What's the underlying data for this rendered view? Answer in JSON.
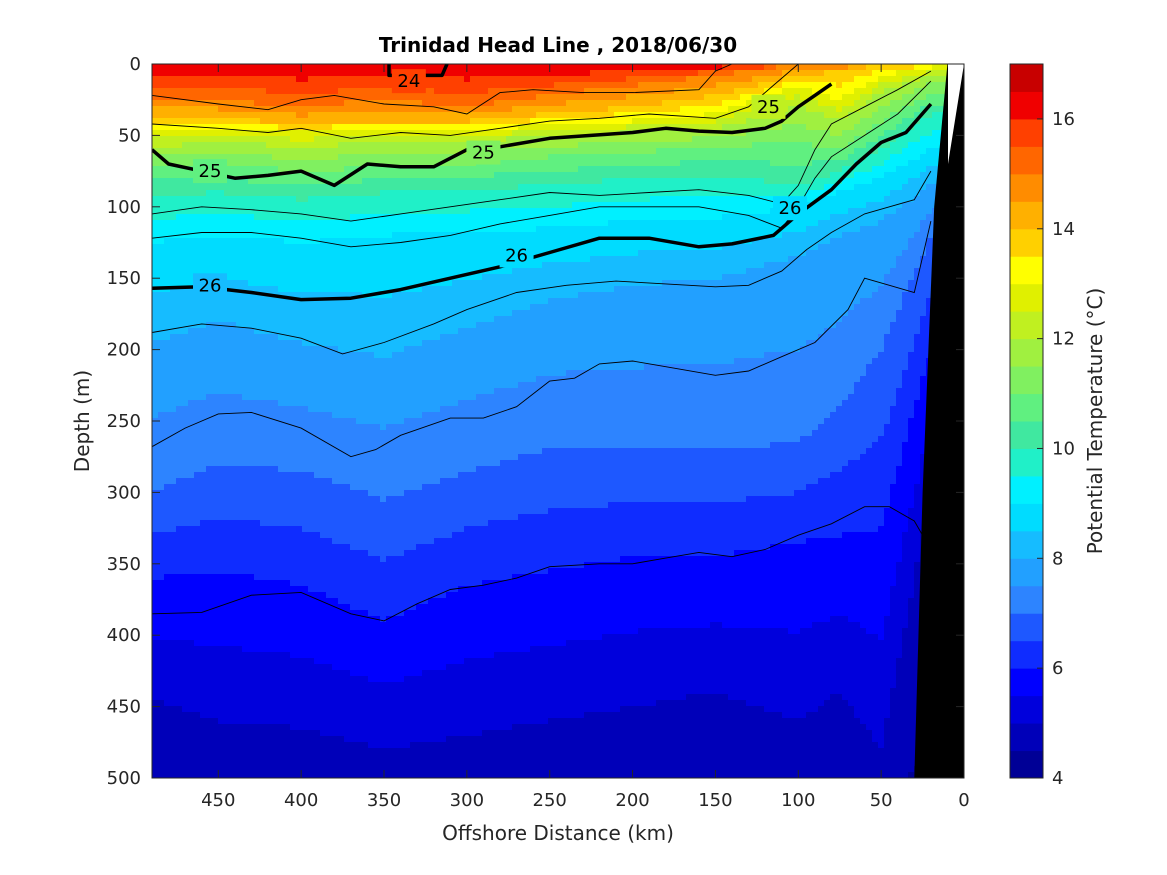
{
  "chart_data": {
    "type": "heatmap",
    "subtype": "filled-contour-section",
    "title": "Trinidad Head Line , 2018/06/30",
    "xlabel": "Offshore Distance (km)",
    "ylabel": "Depth (m)",
    "xlim": [
      490,
      0
    ],
    "x_reversed": true,
    "ylim": [
      0,
      500
    ],
    "y_reversed": true,
    "x_ticks": [
      450,
      400,
      350,
      300,
      250,
      200,
      150,
      100,
      50,
      0
    ],
    "y_ticks": [
      0,
      50,
      100,
      150,
      200,
      250,
      300,
      350,
      400,
      450,
      500
    ],
    "colorbar": {
      "label": "Potential Temperature (°C)",
      "range": [
        4,
        17
      ],
      "ticks": [
        4,
        6,
        8,
        10,
        12,
        14,
        16
      ],
      "levels": [
        4,
        4.5,
        5,
        5.5,
        6,
        6.5,
        7,
        7.5,
        8,
        8.5,
        9,
        9.5,
        10,
        10.5,
        11,
        11.5,
        12,
        12.5,
        13,
        13.5,
        14,
        14.5,
        15,
        15.5,
        16,
        16.5,
        17
      ],
      "colors": [
        "#000096",
        "#0000b9",
        "#0000dc",
        "#0000ff",
        "#0f2cff",
        "#1e58ff",
        "#2d84ff",
        "#22a0ff",
        "#16bcff",
        "#00dcff",
        "#00f0ff",
        "#20f0c8",
        "#40e8a0",
        "#60f080",
        "#80f060",
        "#a0f040",
        "#c0f020",
        "#e0f000",
        "#ffff00",
        "#ffd000",
        "#ffb000",
        "#ff8c00",
        "#ff6600",
        "#ff4000",
        "#f00000",
        "#c80000",
        "#a00000"
      ]
    },
    "temperature_x_km": [
      490,
      450,
      400,
      350,
      300,
      250,
      200,
      150,
      100,
      75,
      50,
      20
    ],
    "temperature_depth_profiles_m": [
      {
        "temp": 15.0,
        "depths": [
          25,
          25,
          30,
          25,
          30,
          22,
          15,
          8,
          0,
          0,
          0,
          0
        ]
      },
      {
        "temp": 14.0,
        "depths": [
          38,
          38,
          42,
          40,
          40,
          35,
          30,
          22,
          8,
          5,
          0,
          0
        ]
      },
      {
        "temp": 13.0,
        "depths": [
          45,
          45,
          48,
          45,
          48,
          42,
          40,
          35,
          15,
          25,
          8,
          2
        ]
      },
      {
        "temp": 12.0,
        "depths": [
          58,
          55,
          58,
          55,
          55,
          50,
          48,
          45,
          30,
          40,
          20,
          8
        ]
      },
      {
        "temp": 11.0,
        "depths": [
          72,
          70,
          75,
          72,
          70,
          65,
          62,
          58,
          55,
          60,
          40,
          20
        ]
      },
      {
        "temp": 10.0,
        "depths": [
          92,
          90,
          95,
          90,
          88,
          85,
          80,
          78,
          85,
          75,
          60,
          35
        ]
      },
      {
        "temp": 9.0,
        "depths": [
          125,
          120,
          125,
          120,
          118,
          115,
          110,
          108,
          100,
          90,
          80,
          60
        ]
      },
      {
        "temp": 8.0,
        "depths": [
          195,
          180,
          195,
          205,
          185,
          165,
          155,
          150,
          135,
          120,
          110,
          85
        ]
      },
      {
        "temp": 7.0,
        "depths": [
          300,
          280,
          285,
          305,
          285,
          270,
          270,
          270,
          265,
          240,
          200,
          120
        ]
      },
      {
        "temp": 6.0,
        "depths": [
          360,
          355,
          365,
          390,
          365,
          355,
          345,
          345,
          335,
          330,
          325,
          200
        ]
      },
      {
        "temp": 5.0,
        "depths": [
          445,
          460,
          465,
          480,
          470,
          460,
          450,
          440,
          460,
          440,
          480,
          300
        ]
      }
    ],
    "density_contours": [
      {
        "label": "24",
        "bold": true,
        "points": [
          [
            347,
            0
          ],
          [
            347,
            8
          ],
          [
            315,
            8
          ],
          [
            312,
            0
          ]
        ]
      },
      {
        "label": "25",
        "bold": true,
        "points": [
          [
            490,
            60
          ],
          [
            480,
            70
          ],
          [
            460,
            75
          ],
          [
            440,
            80
          ],
          [
            420,
            78
          ],
          [
            400,
            75
          ],
          [
            380,
            85
          ],
          [
            360,
            70
          ],
          [
            340,
            72
          ],
          [
            320,
            72
          ],
          [
            300,
            60
          ],
          [
            280,
            58
          ],
          [
            250,
            52
          ],
          [
            200,
            48
          ],
          [
            180,
            45
          ],
          [
            160,
            47
          ],
          [
            140,
            48
          ],
          [
            120,
            45
          ],
          [
            110,
            40
          ],
          [
            100,
            30
          ],
          [
            90,
            22
          ],
          [
            80,
            14
          ]
        ]
      },
      {
        "label": "26",
        "bold": true,
        "points": [
          [
            490,
            157
          ],
          [
            460,
            156
          ],
          [
            430,
            160
          ],
          [
            400,
            165
          ],
          [
            370,
            164
          ],
          [
            340,
            158
          ],
          [
            310,
            150
          ],
          [
            280,
            142
          ],
          [
            250,
            132
          ],
          [
            220,
            122
          ],
          [
            190,
            122
          ],
          [
            160,
            128
          ],
          [
            140,
            126
          ],
          [
            115,
            120
          ],
          [
            100,
            105
          ],
          [
            80,
            88
          ],
          [
            65,
            70
          ],
          [
            50,
            55
          ],
          [
            35,
            48
          ],
          [
            20,
            28
          ]
        ]
      }
    ],
    "thin_contours": [
      [
        [
          490,
          22
        ],
        [
          450,
          28
        ],
        [
          420,
          32
        ],
        [
          400,
          25
        ],
        [
          380,
          22
        ],
        [
          350,
          28
        ],
        [
          320,
          30
        ],
        [
          300,
          35
        ],
        [
          280,
          20
        ],
        [
          260,
          18
        ],
        [
          230,
          20
        ],
        [
          200,
          20
        ],
        [
          160,
          18
        ],
        [
          150,
          5
        ],
        [
          140,
          0
        ]
      ],
      [
        [
          490,
          42
        ],
        [
          450,
          45
        ],
        [
          420,
          48
        ],
        [
          400,
          45
        ],
        [
          370,
          52
        ],
        [
          340,
          48
        ],
        [
          310,
          50
        ],
        [
          280,
          45
        ],
        [
          250,
          40
        ],
        [
          220,
          38
        ],
        [
          190,
          35
        ],
        [
          150,
          38
        ],
        [
          130,
          30
        ],
        [
          115,
          15
        ],
        [
          100,
          0
        ]
      ],
      [
        [
          490,
          105
        ],
        [
          460,
          100
        ],
        [
          430,
          102
        ],
        [
          400,
          105
        ],
        [
          370,
          110
        ],
        [
          340,
          105
        ],
        [
          310,
          100
        ],
        [
          280,
          95
        ],
        [
          250,
          90
        ],
        [
          220,
          92
        ],
        [
          190,
          90
        ],
        [
          160,
          88
        ],
        [
          130,
          92
        ],
        [
          110,
          98
        ],
        [
          100,
          85
        ],
        [
          90,
          60
        ],
        [
          80,
          42
        ],
        [
          60,
          30
        ],
        [
          40,
          18
        ],
        [
          20,
          5
        ]
      ],
      [
        [
          490,
          122
        ],
        [
          460,
          118
        ],
        [
          430,
          118
        ],
        [
          400,
          122
        ],
        [
          370,
          128
        ],
        [
          340,
          125
        ],
        [
          310,
          120
        ],
        [
          280,
          112
        ],
        [
          250,
          106
        ],
        [
          220,
          100
        ],
        [
          190,
          100
        ],
        [
          160,
          100
        ],
        [
          130,
          106
        ],
        [
          110,
          115
        ],
        [
          100,
          100
        ],
        [
          90,
          80
        ],
        [
          80,
          65
        ],
        [
          60,
          50
        ],
        [
          40,
          35
        ],
        [
          20,
          12
        ]
      ],
      [
        [
          490,
          188
        ],
        [
          460,
          182
        ],
        [
          430,
          185
        ],
        [
          400,
          192
        ],
        [
          375,
          203
        ],
        [
          350,
          195
        ],
        [
          320,
          182
        ],
        [
          300,
          172
        ],
        [
          270,
          160
        ],
        [
          240,
          155
        ],
        [
          210,
          152
        ],
        [
          180,
          154
        ],
        [
          150,
          156
        ],
        [
          130,
          155
        ],
        [
          110,
          145
        ],
        [
          95,
          130
        ],
        [
          80,
          118
        ],
        [
          60,
          105
        ],
        [
          45,
          100
        ],
        [
          30,
          95
        ],
        [
          20,
          75
        ]
      ],
      [
        [
          490,
          268
        ],
        [
          470,
          255
        ],
        [
          450,
          245
        ],
        [
          430,
          244
        ],
        [
          400,
          255
        ],
        [
          370,
          275
        ],
        [
          355,
          270
        ],
        [
          340,
          260
        ],
        [
          310,
          248
        ],
        [
          290,
          248
        ],
        [
          270,
          240
        ],
        [
          250,
          222
        ],
        [
          235,
          220
        ],
        [
          220,
          210
        ],
        [
          200,
          208
        ],
        [
          180,
          212
        ],
        [
          150,
          218
        ],
        [
          130,
          215
        ],
        [
          110,
          205
        ],
        [
          90,
          195
        ],
        [
          70,
          172
        ],
        [
          60,
          150
        ],
        [
          45,
          155
        ],
        [
          30,
          160
        ],
        [
          20,
          110
        ]
      ],
      [
        [
          490,
          385
        ],
        [
          460,
          384
        ],
        [
          430,
          372
        ],
        [
          400,
          370
        ],
        [
          370,
          385
        ],
        [
          350,
          390
        ],
        [
          330,
          378
        ],
        [
          310,
          368
        ],
        [
          290,
          365
        ],
        [
          270,
          360
        ],
        [
          250,
          352
        ],
        [
          220,
          350
        ],
        [
          200,
          350
        ],
        [
          180,
          346
        ],
        [
          160,
          342
        ],
        [
          140,
          345
        ],
        [
          120,
          340
        ],
        [
          100,
          330
        ],
        [
          80,
          322
        ],
        [
          60,
          310
        ],
        [
          45,
          310
        ],
        [
          30,
          320
        ],
        [
          20,
          340
        ]
      ]
    ],
    "bathymetry_profile": [
      [
        10,
        0
      ],
      [
        18,
        100
      ],
      [
        25,
        300
      ],
      [
        30,
        500
      ]
    ]
  }
}
